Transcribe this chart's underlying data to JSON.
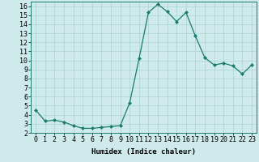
{
  "x": [
    0,
    1,
    2,
    3,
    4,
    5,
    6,
    7,
    8,
    9,
    10,
    11,
    12,
    13,
    14,
    15,
    16,
    17,
    18,
    19,
    20,
    21,
    22,
    23
  ],
  "y": [
    4.5,
    3.3,
    3.4,
    3.2,
    2.8,
    2.5,
    2.5,
    2.6,
    2.7,
    2.8,
    5.3,
    10.2,
    15.3,
    16.2,
    15.4,
    14.3,
    15.3,
    12.7,
    10.3,
    9.5,
    9.7,
    9.4,
    8.5,
    9.5
  ],
  "line_color": "#1a7a6e",
  "marker": "D",
  "marker_size": 2,
  "bg_color": "#ceeaea",
  "grid_color": "#aad4d4",
  "xlabel": "Humidex (Indice chaleur)",
  "ylim": [
    2,
    16.5
  ],
  "xlim": [
    -0.5,
    23.5
  ],
  "yticks": [
    2,
    3,
    4,
    5,
    6,
    7,
    8,
    9,
    10,
    11,
    12,
    13,
    14,
    15,
    16
  ],
  "xticks": [
    0,
    1,
    2,
    3,
    4,
    5,
    6,
    7,
    8,
    9,
    10,
    11,
    12,
    13,
    14,
    15,
    16,
    17,
    18,
    19,
    20,
    21,
    22,
    23
  ],
  "label_fontsize": 6.5,
  "tick_fontsize": 6
}
